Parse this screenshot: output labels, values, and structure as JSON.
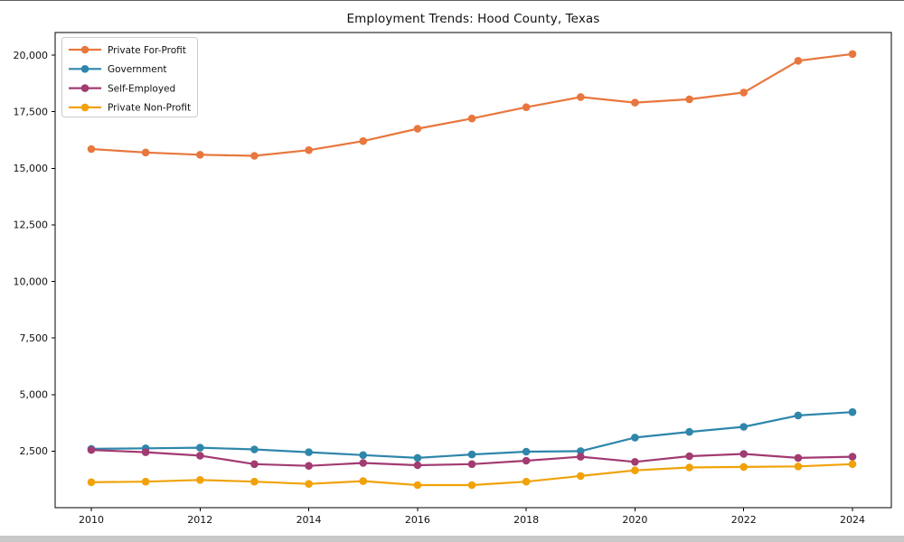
{
  "window": {
    "background": "#ffffff",
    "bottom_strip_color": "#c9c9c9"
  },
  "chart_data": {
    "type": "line",
    "title": "Employment Trends: Hood County, Texas",
    "xlabel": "",
    "ylabel": "",
    "grid": false,
    "legend_position": "upper left",
    "x": [
      2010,
      2011,
      2012,
      2013,
      2014,
      2015,
      2016,
      2017,
      2018,
      2019,
      2020,
      2021,
      2022,
      2023,
      2024
    ],
    "xticks": [
      2010,
      2012,
      2014,
      2016,
      2018,
      2020,
      2022,
      2024
    ],
    "yticks": [
      2500,
      5000,
      7500,
      10000,
      12500,
      15000,
      17500,
      20000
    ],
    "ylim": [
      0,
      21000
    ],
    "axis_color": "#000000",
    "series": [
      {
        "name": "Private For-Profit",
        "color": "#E8773D",
        "values": [
          15850,
          15700,
          15600,
          15550,
          15800,
          16200,
          16750,
          17200,
          17700,
          18150,
          17900,
          18050,
          18350,
          19750,
          20050
        ]
      },
      {
        "name": "Government",
        "color": "#2E86AB",
        "values": [
          2600,
          2625,
          2650,
          2575,
          2450,
          2325,
          2200,
          2350,
          2475,
          2500,
          3100,
          3350,
          3575,
          4075,
          4225
        ]
      },
      {
        "name": "Self-Employed",
        "color": "#A23B72",
        "values": [
          2550,
          2450,
          2300,
          1925,
          1850,
          1975,
          1875,
          1925,
          2075,
          2250,
          2025,
          2275,
          2375,
          2200,
          2250
        ]
      },
      {
        "name": "Private Non-Profit",
        "color": "#F1A208",
        "values": [
          1125,
          1150,
          1225,
          1150,
          1050,
          1175,
          1000,
          1000,
          1150,
          1400,
          1650,
          1775,
          1800,
          1825,
          1925
        ]
      }
    ]
  }
}
